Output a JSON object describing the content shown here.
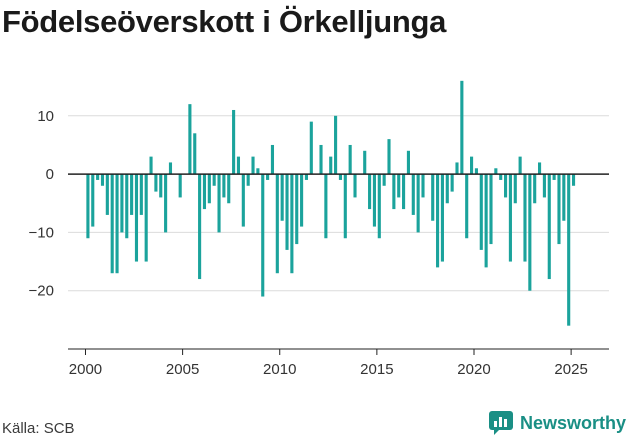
{
  "title": "Födelseöverskott i Örkelljunga",
  "source": "Källa: SCB",
  "brand": {
    "name": "Newsworthy",
    "icon": "newsworthy-logo-icon",
    "color": "#1a8f85"
  },
  "colors": {
    "bar": "#1ba39c",
    "zero_line": "#222222",
    "grid": "#dcdcdc",
    "axis_text": "#333333"
  },
  "chart_data": {
    "type": "bar",
    "title": "Födelseöverskott i Örkelljunga",
    "xlabel": "",
    "ylabel": "",
    "xlim": [
      1999.1,
      2026.95
    ],
    "ylim": [
      -30,
      17
    ],
    "x_ticks": [
      2000,
      2005,
      2010,
      2015,
      2020,
      2025
    ],
    "x_tick_labels": [
      "2000",
      "2005",
      "2010",
      "2015",
      "2020",
      "2025"
    ],
    "y_ticks": [
      -20,
      -10,
      0,
      10
    ],
    "y_tick_labels": [
      "−20",
      "−10",
      "0",
      "10"
    ],
    "grid": "horizontal",
    "bar_width_years": 0.16,
    "x": [
      2000.125,
      2000.375,
      2000.625,
      2000.875,
      2001.125,
      2001.375,
      2001.625,
      2001.875,
      2002.125,
      2002.375,
      2002.625,
      2002.875,
      2003.125,
      2003.375,
      2003.625,
      2003.875,
      2004.125,
      2004.375,
      2004.625,
      2004.875,
      2005.125,
      2005.375,
      2005.625,
      2005.875,
      2006.125,
      2006.375,
      2006.625,
      2006.875,
      2007.125,
      2007.375,
      2007.625,
      2007.875,
      2008.125,
      2008.375,
      2008.625,
      2008.875,
      2009.125,
      2009.375,
      2009.625,
      2009.875,
      2010.125,
      2010.375,
      2010.625,
      2010.875,
      2011.125,
      2011.375,
      2011.625,
      2011.875,
      2012.125,
      2012.375,
      2012.625,
      2012.875,
      2013.125,
      2013.375,
      2013.625,
      2013.875,
      2014.125,
      2014.375,
      2014.625,
      2014.875,
      2015.125,
      2015.375,
      2015.625,
      2015.875,
      2016.125,
      2016.375,
      2016.625,
      2016.875,
      2017.125,
      2017.375,
      2017.625,
      2017.875,
      2018.125,
      2018.375,
      2018.625,
      2018.875,
      2019.125,
      2019.375,
      2019.625,
      2019.875,
      2020.125,
      2020.375,
      2020.625,
      2020.875,
      2021.125,
      2021.375,
      2021.625,
      2021.875,
      2022.125,
      2022.375,
      2022.625,
      2022.875,
      2023.125,
      2023.375,
      2023.625,
      2023.875,
      2024.125,
      2024.375,
      2024.625,
      2024.875,
      2025.125,
      2025.375
    ],
    "values": [
      -11,
      -9,
      -1,
      -2,
      -7,
      -17,
      -17,
      -10,
      -11,
      -7,
      -15,
      -7,
      -15,
      3,
      -3,
      -4,
      -10,
      2,
      0,
      -4,
      0,
      12,
      7,
      -18,
      -6,
      -5,
      -2,
      -10,
      -4,
      -5,
      11,
      3,
      -9,
      -2,
      3,
      1,
      -21,
      -1,
      5,
      -17,
      -8,
      -13,
      -17,
      -12,
      -9,
      -1,
      9,
      0,
      5,
      -11,
      3,
      10,
      -1,
      -11,
      5,
      -4,
      0,
      4,
      -6,
      -9,
      -11,
      -2,
      6,
      -6,
      -4,
      -6,
      4,
      -7,
      -10,
      -4,
      0,
      -8,
      -16,
      -15,
      -5,
      -3,
      2,
      16,
      -11,
      3,
      1,
      -13,
      -16,
      -12,
      1,
      -1,
      -4,
      -15,
      -5,
      3,
      -15,
      -20,
      -5,
      2,
      -4,
      -18,
      -1,
      -12,
      -8,
      -26,
      -2,
      0
    ]
  }
}
